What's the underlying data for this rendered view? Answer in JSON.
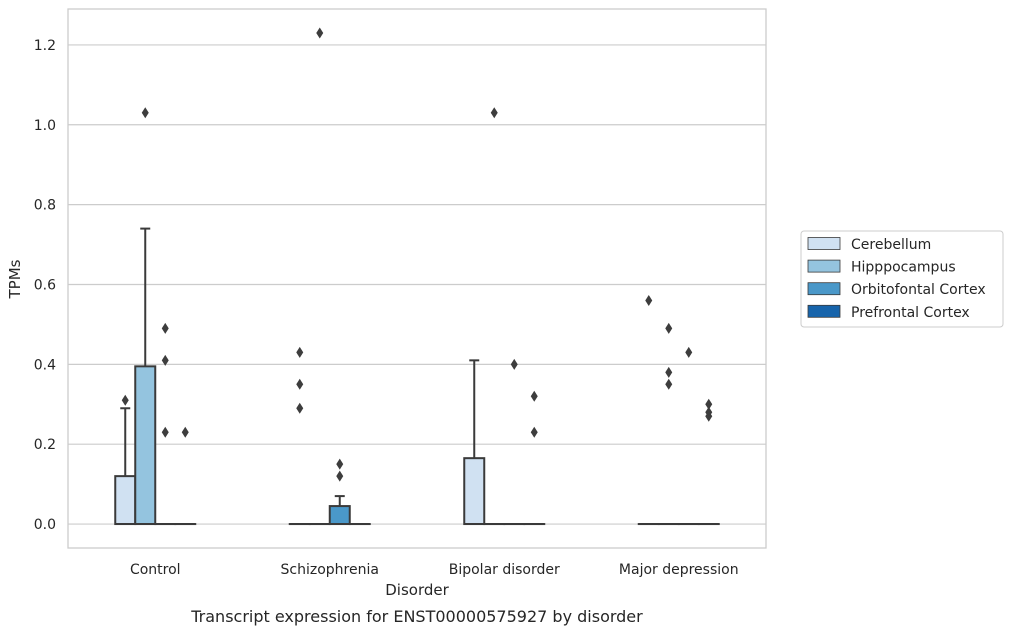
{
  "chart_data": {
    "type": "boxplot",
    "title": "",
    "caption": "Transcript expression for ENST00000575927 by disorder",
    "xlabel": "Disorder",
    "ylabel": "TPMs",
    "ylim": [
      -0.06,
      1.29
    ],
    "yticks": [
      0.0,
      0.2,
      0.4,
      0.6,
      0.8,
      1.0,
      1.2
    ],
    "ytick_labels": [
      "0.0",
      "0.2",
      "0.4",
      "0.6",
      "0.8",
      "1.0",
      "1.2"
    ],
    "grid": true,
    "legend_position": "right",
    "categories": [
      "Control",
      "Schizophrenia",
      "Bipolar disorder",
      "Major depression"
    ],
    "series": [
      {
        "name": "Cerebellum",
        "color": "#d0e1f2",
        "boxes": [
          {
            "q1": 0.0,
            "median": 0.0,
            "q3": 0.12,
            "whisker_low": 0.0,
            "whisker_high": 0.29,
            "outliers": [
              0.31
            ]
          },
          {
            "q1": 0.0,
            "median": 0.0,
            "q3": 0.0,
            "whisker_low": 0.0,
            "whisker_high": 0.0,
            "outliers": [
              0.29,
              0.35,
              0.43
            ]
          },
          {
            "q1": 0.0,
            "median": 0.0,
            "q3": 0.165,
            "whisker_low": 0.0,
            "whisker_high": 0.41,
            "outliers": []
          },
          {
            "q1": 0.0,
            "median": 0.0,
            "q3": 0.0,
            "whisker_low": 0.0,
            "whisker_high": 0.0,
            "outliers": [
              0.56
            ]
          }
        ]
      },
      {
        "name": "Hipppocampus",
        "color": "#94c4df",
        "boxes": [
          {
            "q1": 0.0,
            "median": 0.0,
            "q3": 0.395,
            "whisker_low": 0.0,
            "whisker_high": 0.74,
            "outliers": [
              1.03
            ]
          },
          {
            "q1": 0.0,
            "median": 0.0,
            "q3": 0.0,
            "whisker_low": 0.0,
            "whisker_high": 0.0,
            "outliers": [
              1.23
            ]
          },
          {
            "q1": 0.0,
            "median": 0.0,
            "q3": 0.0,
            "whisker_low": 0.0,
            "whisker_high": 0.0,
            "outliers": [
              1.03
            ]
          },
          {
            "q1": 0.0,
            "median": 0.0,
            "q3": 0.0,
            "whisker_low": 0.0,
            "whisker_high": 0.0,
            "outliers": [
              0.35,
              0.38,
              0.49
            ]
          }
        ]
      },
      {
        "name": "Orbitofontal Cortex",
        "color": "#4a98c9",
        "boxes": [
          {
            "q1": 0.0,
            "median": 0.0,
            "q3": 0.0,
            "whisker_low": 0.0,
            "whisker_high": 0.0,
            "outliers": [
              0.23,
              0.41,
              0.49
            ]
          },
          {
            "q1": 0.0,
            "median": 0.0,
            "q3": 0.045,
            "whisker_low": 0.0,
            "whisker_high": 0.07,
            "outliers": [
              0.12,
              0.15
            ]
          },
          {
            "q1": 0.0,
            "median": 0.0,
            "q3": 0.0,
            "whisker_low": 0.0,
            "whisker_high": 0.0,
            "outliers": [
              0.4
            ]
          },
          {
            "q1": 0.0,
            "median": 0.0,
            "q3": 0.0,
            "whisker_low": 0.0,
            "whisker_high": 0.0,
            "outliers": [
              0.43
            ]
          }
        ]
      },
      {
        "name": "Prefrontal Cortex",
        "color": "#1764ab",
        "boxes": [
          {
            "q1": 0.0,
            "median": 0.0,
            "q3": 0.0,
            "whisker_low": 0.0,
            "whisker_high": 0.0,
            "outliers": [
              0.23
            ]
          },
          {
            "q1": 0.0,
            "median": 0.0,
            "q3": 0.0,
            "whisker_low": 0.0,
            "whisker_high": 0.0,
            "outliers": []
          },
          {
            "q1": 0.0,
            "median": 0.0,
            "q3": 0.0,
            "whisker_low": 0.0,
            "whisker_high": 0.0,
            "outliers": [
              0.23,
              0.32
            ]
          },
          {
            "q1": 0.0,
            "median": 0.0,
            "q3": 0.0,
            "whisker_low": 0.0,
            "whisker_high": 0.0,
            "outliers": [
              0.27,
              0.28,
              0.3
            ]
          }
        ]
      }
    ]
  }
}
